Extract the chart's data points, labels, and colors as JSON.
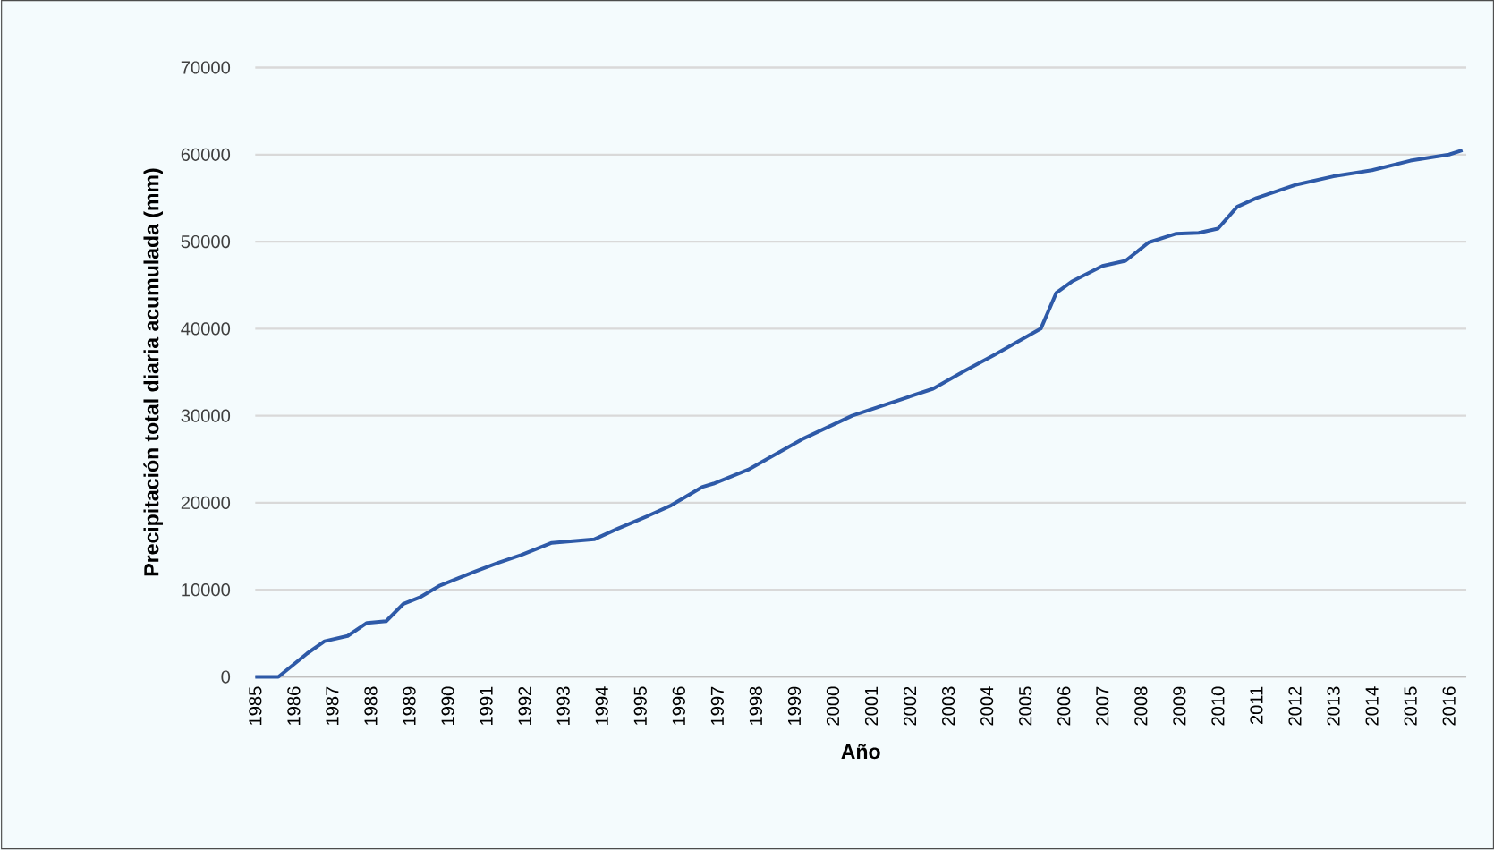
{
  "chart_data": {
    "type": "line",
    "xlabel": "Año",
    "ylabel": "Precipitación total diaria acumulada (mm)",
    "x": [
      1985.0,
      1985.6,
      1986.35,
      1986.8,
      1987.4,
      1987.9,
      1988.4,
      1988.85,
      1989.3,
      1989.8,
      1990.25,
      1990.7,
      1991.3,
      1991.9,
      1992.7,
      1993.8,
      1994.4,
      1995.2,
      1995.8,
      1996.6,
      1996.9,
      1997.8,
      1999.2,
      2000.5,
      2002.6,
      2003.4,
      2004.2,
      2005.4,
      2005.8,
      2006.2,
      2007.0,
      2007.6,
      2008.2,
      2008.9,
      2009.5,
      2010.0,
      2010.5,
      2011.0,
      2012.0,
      2013.0,
      2014.0,
      2015.0,
      2016.0,
      2016.35
    ],
    "series": [
      {
        "color": "#2e5aa8",
        "values": [
          0,
          0,
          2700,
          4100,
          4700,
          6200,
          6400,
          8400,
          9200,
          10500,
          11300,
          12100,
          13100,
          14000,
          15400,
          15800,
          17000,
          18500,
          19700,
          21800,
          22200,
          23800,
          27300,
          30000,
          33100,
          35100,
          37000,
          40000,
          44100,
          45400,
          47200,
          47800,
          49900,
          50900,
          51000,
          51500,
          54000,
          55000,
          56500,
          57500,
          58200,
          59300,
          60000,
          60500
        ]
      }
    ],
    "xlim": [
      1985,
      2016.45
    ],
    "xticks": [
      1985,
      1986,
      1987,
      1988,
      1989,
      1990,
      1991,
      1992,
      1993,
      1994,
      1995,
      1996,
      1997,
      1998,
      1999,
      2000,
      2001,
      2002,
      2003,
      2004,
      2005,
      2006,
      2007,
      2008,
      2009,
      2010,
      2011,
      2012,
      2013,
      2014,
      2015,
      2016
    ],
    "ylim": [
      0,
      70000
    ],
    "yticks": [
      0,
      10000,
      20000,
      30000,
      40000,
      50000,
      60000,
      70000
    ],
    "grid": "y",
    "marker": "none",
    "line_style": "solid"
  }
}
